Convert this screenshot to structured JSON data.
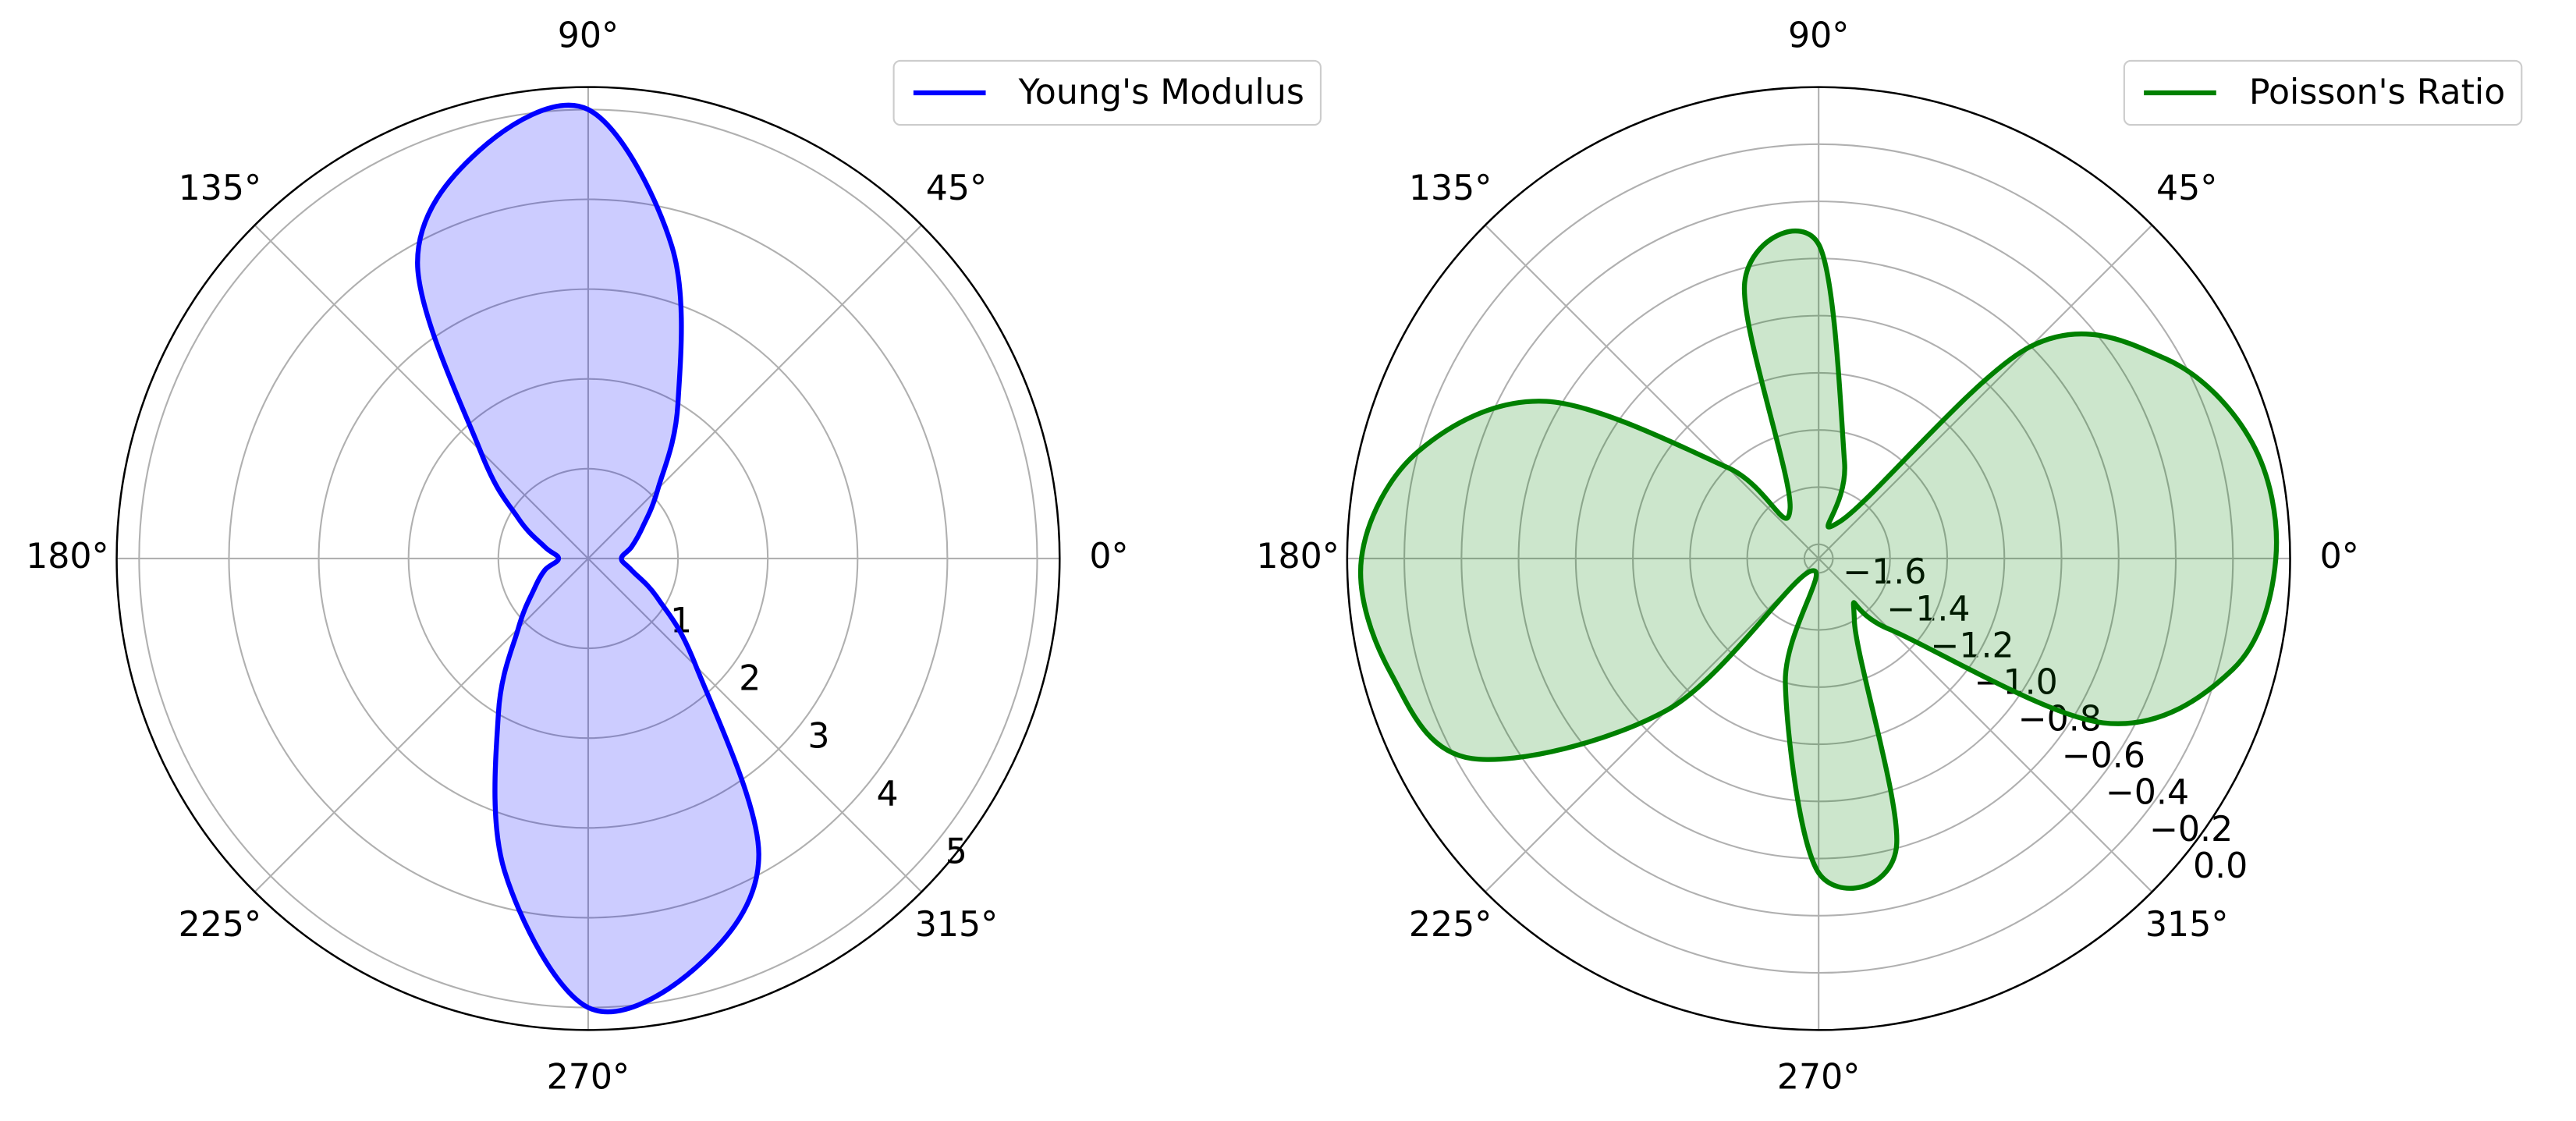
{
  "chart_data": [
    {
      "type": "polar",
      "x": [
        0,
        15,
        30,
        45,
        60,
        75,
        90,
        105,
        120,
        135,
        150,
        165,
        180,
        195,
        210,
        225,
        240,
        255,
        270,
        285,
        300,
        315,
        330,
        345
      ],
      "xlim": [
        0,
        360
      ],
      "xticks": [
        {
          "value": 0,
          "label": "0°"
        },
        {
          "value": 45,
          "label": "45°"
        },
        {
          "value": 90,
          "label": "90°"
        },
        {
          "value": 135,
          "label": "135°"
        },
        {
          "value": 180,
          "label": "180°"
        },
        {
          "value": 225,
          "label": "225°"
        },
        {
          "value": 270,
          "label": "270°"
        },
        {
          "value": 315,
          "label": "315°"
        }
      ],
      "ylim": [
        0,
        5.25
      ],
      "yticks": [
        1,
        2,
        3,
        4,
        5
      ],
      "grid": true,
      "fill": true,
      "legend": "upper right",
      "series": [
        {
          "name": "Young's Modulus",
          "color": "#0000ff",
          "values": [
            0.37,
            0.5,
            0.7,
            1.1,
            2.0,
            3.6,
            5.0,
            4.7,
            3.8,
            1.7,
            0.9,
            0.5,
            0.33,
            0.5,
            0.7,
            1.1,
            2.0,
            3.6,
            5.0,
            4.7,
            3.8,
            1.7,
            0.9,
            0.5
          ]
        }
      ]
    },
    {
      "type": "polar",
      "x": [
        0,
        15,
        30,
        45,
        60,
        75,
        90,
        105,
        120,
        135,
        150,
        165,
        180,
        195,
        210,
        225,
        240,
        255,
        270,
        285,
        300,
        315,
        330,
        345
      ],
      "xlim": [
        0,
        360
      ],
      "xticks": [
        {
          "value": 0,
          "label": "0°"
        },
        {
          "value": 45,
          "label": "45°"
        },
        {
          "value": 90,
          "label": "90°"
        },
        {
          "value": 135,
          "label": "135°"
        },
        {
          "value": 180,
          "label": "180°"
        },
        {
          "value": 225,
          "label": "225°"
        },
        {
          "value": 270,
          "label": "270°"
        },
        {
          "value": 315,
          "label": "315°"
        }
      ],
      "ylim": [
        -1.65,
        0
      ],
      "yticks": [
        {
          "value": -1.6,
          "label": "−1.6"
        },
        {
          "value": -1.4,
          "label": "−1.4"
        },
        {
          "value": -1.2,
          "label": "−1.2"
        },
        {
          "value": -1.0,
          "label": "−1.0"
        },
        {
          "value": -0.8,
          "label": "−0.8"
        },
        {
          "value": -0.6,
          "label": "−0.6"
        },
        {
          "value": -0.4,
          "label": "−0.4"
        },
        {
          "value": -0.2,
          "label": "−0.2"
        },
        {
          "value": 0,
          "label": "0.0"
        }
      ],
      "grid": true,
      "fill": true,
      "legend": "upper right",
      "series": [
        {
          "name": "Poisson's Ratio",
          "color": "#008000",
          "values": [
            -0.05,
            -0.08,
            -0.25,
            -0.6,
            -1.5,
            -1.3,
            -0.55,
            -0.65,
            -1.45,
            -1.2,
            -0.55,
            -0.2,
            -0.05,
            -0.1,
            -0.25,
            -0.9,
            -1.6,
            -1.2,
            -0.55,
            -0.6,
            -1.4,
            -1.3,
            -0.5,
            -0.15
          ]
        }
      ]
    }
  ]
}
